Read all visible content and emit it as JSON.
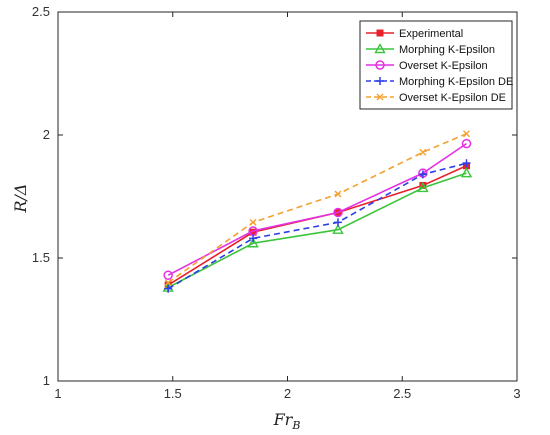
{
  "chart_data": {
    "type": "line",
    "xlabel": "Fr_B",
    "ylabel": "R/Δ",
    "xlim": [
      1,
      3
    ],
    "ylim": [
      1,
      2.5
    ],
    "x_ticks": [
      1,
      1.5,
      2,
      2.5,
      3
    ],
    "y_ticks": [
      1,
      1.5,
      2,
      2.5
    ],
    "x_tick_labels": [
      "1",
      "1.5",
      "2",
      "2.5",
      "3"
    ],
    "y_tick_labels": [
      "1",
      "1.5",
      "2",
      "2.5"
    ],
    "grid": false,
    "legend_position": "top-right",
    "series": [
      {
        "name": "Experimental",
        "color": "#e8202a",
        "dash": "solid",
        "marker": "square",
        "x": [
          1.48,
          1.85,
          2.22,
          2.59,
          2.78
        ],
        "y": [
          1.39,
          1.605,
          1.685,
          1.795,
          1.875
        ]
      },
      {
        "name": "Morphing K-Epsilon",
        "color": "#3cc43c",
        "dash": "solid",
        "marker": "triangle",
        "x": [
          1.48,
          1.85,
          2.22,
          2.59,
          2.78
        ],
        "y": [
          1.38,
          1.56,
          1.615,
          1.785,
          1.845
        ]
      },
      {
        "name": "Overset K-Epsilon",
        "color": "#e431e4",
        "dash": "solid",
        "marker": "circle",
        "x": [
          1.48,
          1.85,
          2.22,
          2.59,
          2.78
        ],
        "y": [
          1.43,
          1.61,
          1.685,
          1.845,
          1.965
        ]
      },
      {
        "name": "Morphing K-Epsilon DE",
        "color": "#2d3ee6",
        "dash": "dashed",
        "marker": "plus",
        "x": [
          1.48,
          1.85,
          2.22,
          2.59,
          2.78
        ],
        "y": [
          1.375,
          1.58,
          1.645,
          1.84,
          1.885
        ]
      },
      {
        "name": "Overset K-Epsilon DE",
        "color": "#f5a030",
        "dash": "dashed",
        "marker": "x",
        "x": [
          1.48,
          1.85,
          2.22,
          2.59,
          2.78
        ],
        "y": [
          1.4,
          1.645,
          1.76,
          1.93,
          2.005
        ]
      }
    ]
  }
}
